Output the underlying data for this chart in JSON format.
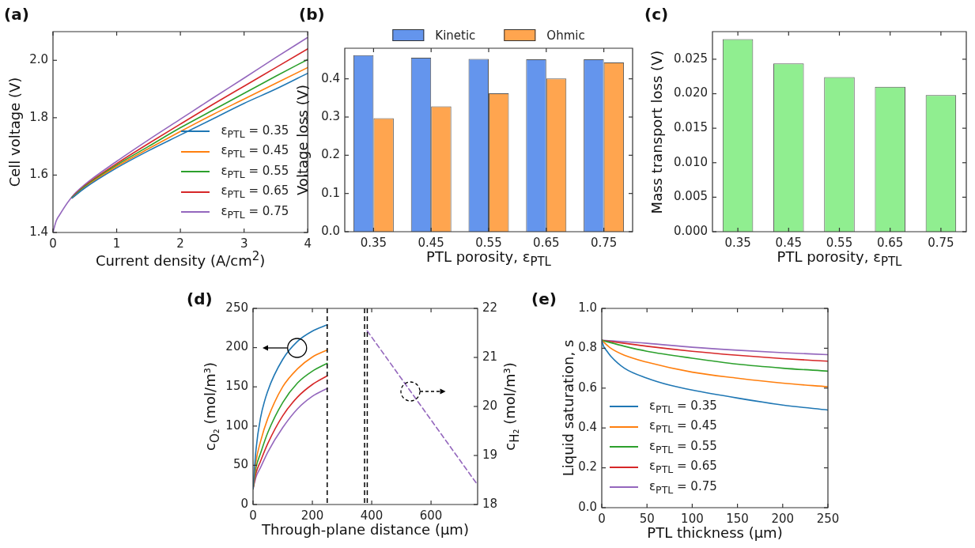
{
  "chart_data": [
    {
      "type": "line",
      "title": "(a)",
      "xlabel": "Current density (A/cm$^{2}$)",
      "ylabel": "Cell voltage (V)",
      "x": [
        0,
        0.05,
        0.1,
        0.3,
        0.5,
        1,
        1.5,
        2,
        2.5,
        3,
        3.5,
        4
      ],
      "xlim": [
        0,
        4
      ],
      "xticks": [
        0,
        1,
        2,
        3,
        4
      ],
      "ylim": [
        1.4,
        2.1
      ],
      "yticks": [
        1.4,
        1.6,
        1.8,
        {
          "value": 2,
          "label": "2.0"
        }
      ],
      "legend": "bottom right",
      "series": [
        {
          "name": "ε$_{PTL}$ = 0.35",
          "color": "#1f77b4",
          "values": [
            null,
            null,
            null,
            1.52,
            1.555,
            1.625,
            1.685,
            1.74,
            1.795,
            1.85,
            1.9,
            1.955
          ]
        },
        {
          "name": "ε$_{PTL}$ = 0.45",
          "color": "#ff7f0e",
          "values": [
            null,
            null,
            null,
            1.52,
            1.557,
            1.63,
            1.692,
            1.752,
            1.81,
            1.865,
            1.92,
            1.975
          ]
        },
        {
          "name": "ε$_{PTL}$ = 0.55",
          "color": "#2ca02c",
          "values": [
            null,
            null,
            null,
            1.522,
            1.56,
            1.635,
            1.7,
            1.765,
            1.825,
            1.885,
            1.945,
            2.003
          ]
        },
        {
          "name": "ε$_{PTL}$ = 0.65",
          "color": "#d62728",
          "values": [
            null,
            null,
            null,
            1.523,
            1.563,
            1.64,
            1.71,
            1.778,
            1.845,
            1.91,
            1.975,
            2.04
          ]
        },
        {
          "name": "ε$_{PTL}$ = 0.75",
          "color": "#9467bd",
          "values": [
            1.4,
            1.44,
            1.46,
            1.525,
            1.567,
            1.648,
            1.723,
            1.795,
            1.867,
            1.938,
            2.01,
            2.08
          ]
        }
      ]
    },
    {
      "type": "bar",
      "title": "(b)",
      "xlabel": "PTL porosity, ε$_{PTL}$",
      "ylabel": "Voltage loss (V)",
      "categories": [
        "0.35",
        "0.45",
        "0.55",
        "0.65",
        "0.75"
      ],
      "ylim": [
        0,
        0.48
      ],
      "yticks": [
        {
          "value": 0,
          "label": "0.0"
        },
        0.1,
        0.2,
        0.3,
        0.4
      ],
      "legend": "top",
      "series": [
        {
          "name": "Kinetic",
          "color": "#6495ed",
          "values": [
            0.462,
            0.455,
            0.452,
            0.451,
            0.451
          ]
        },
        {
          "name": "Ohmic",
          "color": "#ffa54f",
          "values": [
            0.297,
            0.328,
            0.362,
            0.401,
            0.443
          ]
        }
      ]
    },
    {
      "type": "bar",
      "title": "(c)",
      "xlabel": "PTL porosity, ε$_{PTL}$",
      "ylabel": "Mass transport loss (V)",
      "categories": [
        "0.35",
        "0.45",
        "0.55",
        "0.65",
        "0.75"
      ],
      "values": [
        0.0279,
        0.0244,
        0.0224,
        0.021,
        0.0198
      ],
      "color": "#90ee90",
      "ylim": [
        0,
        0.029
      ],
      "yticks": [
        {
          "value": 0,
          "label": "0.000"
        },
        {
          "value": 0.005,
          "label": "0.005"
        },
        {
          "value": 0.01,
          "label": "0.010"
        },
        {
          "value": 0.015,
          "label": "0.015"
        },
        {
          "value": 0.02,
          "label": "0.020"
        },
        {
          "value": 0.025,
          "label": "0.025"
        }
      ]
    },
    {
      "type": "line",
      "title": "(d)",
      "xlabel": "Through-plane distance (μm)",
      "ylabel": "c$_{O₂}$ (mol/m³)",
      "y2label": "c$_{H₂}$ (mol/m³)",
      "xlim": [
        0,
        757
      ],
      "xticks": [
        0,
        200,
        400,
        600
      ],
      "ylim": [
        0,
        250
      ],
      "yticks": [
        0,
        50,
        100,
        150,
        200,
        250
      ],
      "y2lim": [
        18,
        22
      ],
      "y2ticks": [
        18,
        19,
        20,
        21,
        22
      ],
      "series": [
        {
          "color": "#1f77b4",
          "x": [
            0,
            10,
            25,
            50,
            100,
            150,
            200,
            250
          ],
          "values": [
            20,
            70,
            110,
            145,
            185,
            208,
            221,
            229
          ]
        },
        {
          "color": "#ff7f0e",
          "x": [
            0,
            10,
            25,
            50,
            100,
            150,
            200,
            250
          ],
          "values": [
            20,
            55,
            80,
            110,
            150,
            173,
            188,
            197
          ]
        },
        {
          "color": "#2ca02c",
          "x": [
            0,
            10,
            25,
            50,
            100,
            150,
            200,
            250
          ],
          "values": [
            20,
            47,
            65,
            92,
            130,
            155,
            170,
            180
          ]
        },
        {
          "color": "#d62728",
          "x": [
            0,
            10,
            25,
            50,
            100,
            150,
            200,
            250
          ],
          "values": [
            20,
            40,
            55,
            78,
            113,
            137,
            153,
            164
          ]
        },
        {
          "color": "#9467bd",
          "x": [
            0,
            10,
            25,
            50,
            100,
            150,
            200,
            250
          ],
          "values": [
            20,
            35,
            47,
            67,
            98,
            122,
            138,
            148
          ]
        },
        {
          "color": "#9467bd",
          "axis": "y2",
          "line_style": "dashed",
          "x": [
            385,
            757
          ],
          "values": [
            21.54,
            18.4
          ]
        }
      ],
      "ref_lines": [
        {
          "axis": "x",
          "value": 250,
          "color": "#000000",
          "line_style": "dashed"
        },
        {
          "axis": "x",
          "value": 376,
          "color": "#000000",
          "line_style": "dashed"
        },
        {
          "axis": "x",
          "value": 385,
          "color": "#000000",
          "line_style": "dashed"
        }
      ]
    },
    {
      "type": "line",
      "title": "(e)",
      "xlabel": "PTL thickness (μm)",
      "ylabel": "Liquid saturation, s",
      "xlim": [
        0,
        250
      ],
      "xticks": [
        0,
        50,
        100,
        150,
        200,
        250
      ],
      "ylim": [
        0,
        1
      ],
      "yticks": [
        {
          "value": 0,
          "label": "0.0"
        },
        0.2,
        0.4,
        0.6,
        0.8,
        {
          "value": 1,
          "label": "1.0"
        }
      ],
      "legend": "bottom left",
      "series": [
        {
          "name": "ε$_{PTL}$ = 0.35",
          "color": "#1f77b4",
          "x": [
            0,
            2,
            5,
            10,
            25,
            50,
            75,
            100,
            150,
            200,
            250
          ],
          "values": [
            0.84,
            0.81,
            0.79,
            0.76,
            0.7,
            0.65,
            0.615,
            0.59,
            0.55,
            0.515,
            0.49
          ]
        },
        {
          "name": "ε$_{PTL}$ = 0.45",
          "color": "#ff7f0e",
          "x": [
            0,
            10,
            25,
            50,
            100,
            150,
            200,
            250
          ],
          "values": [
            0.84,
            0.8,
            0.765,
            0.73,
            0.68,
            0.65,
            0.625,
            0.607
          ]
        },
        {
          "name": "ε$_{PTL}$ = 0.55",
          "color": "#2ca02c",
          "x": [
            0,
            25,
            50,
            100,
            150,
            200,
            250
          ],
          "values": [
            0.84,
            0.81,
            0.785,
            0.75,
            0.72,
            0.7,
            0.685
          ]
        },
        {
          "name": "ε$_{PTL}$ = 0.65",
          "color": "#d62728",
          "x": [
            0,
            25,
            50,
            100,
            150,
            200,
            250
          ],
          "values": [
            0.84,
            0.825,
            0.81,
            0.785,
            0.765,
            0.748,
            0.735
          ]
        },
        {
          "name": "ε$_{PTL}$ = 0.75",
          "color": "#9467bd",
          "x": [
            0,
            50,
            100,
            150,
            200,
            250
          ],
          "values": [
            0.84,
            0.825,
            0.805,
            0.79,
            0.778,
            0.768
          ]
        }
      ]
    }
  ]
}
